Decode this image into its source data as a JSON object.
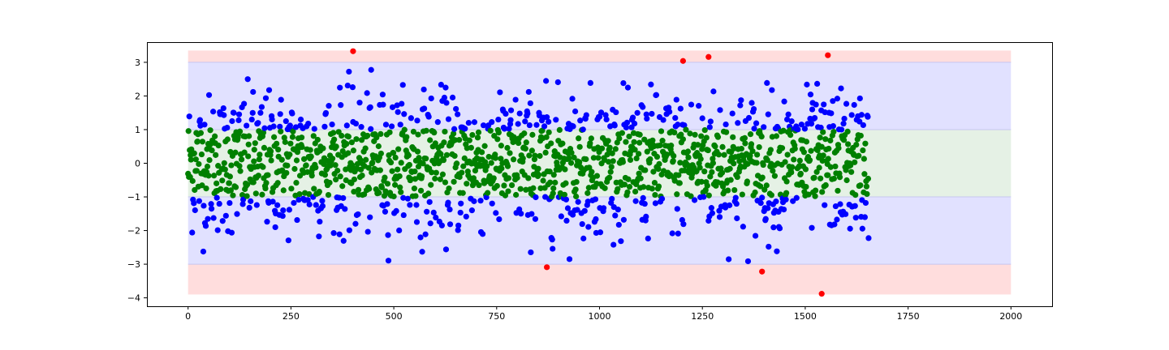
{
  "chart_data": {
    "type": "scatter",
    "title": "",
    "xlabel": "",
    "ylabel": "",
    "xlim": [
      -100,
      2100
    ],
    "ylim": [
      -4.25,
      3.6
    ],
    "xticks": [
      0,
      250,
      500,
      750,
      1000,
      1250,
      1500,
      1750,
      2000
    ],
    "yticks": [
      -4,
      -3,
      -2,
      -1,
      0,
      1,
      2,
      3
    ],
    "grid": false,
    "n_points": 1655,
    "bands": [
      {
        "name": "outer",
        "y0": -3.9,
        "y1": -3.0,
        "x0": 0,
        "x1": 2000,
        "color": "#ffdddd"
      },
      {
        "name": "outer",
        "y0": 3.0,
        "y1": 3.35,
        "x0": 0,
        "x1": 2000,
        "color": "#ffdddd"
      },
      {
        "name": "middle",
        "y0": -3.0,
        "y1": -1.0,
        "x0": 0,
        "x1": 2000,
        "color": "#e1e1ff"
      },
      {
        "name": "middle",
        "y0": 1.0,
        "y1": 3.0,
        "x0": 0,
        "x1": 2000,
        "color": "#e1e1ff"
      },
      {
        "name": "inner",
        "y0": -1.0,
        "y1": 1.0,
        "x0": 0,
        "x1": 2000,
        "color": "#e5f1e5"
      }
    ],
    "series": [
      {
        "color": "#008000",
        "rule": "|y| <= 1"
      },
      {
        "color": "#0000ff",
        "rule": "1 < |y| <= 3"
      },
      {
        "color": "#ff0000",
        "rule": "|y| > 3",
        "points": [
          {
            "x": 401,
            "y": 3.33
          },
          {
            "x": 872,
            "y": -3.09
          },
          {
            "x": 1203,
            "y": 3.04
          },
          {
            "x": 1265,
            "y": 3.16
          },
          {
            "x": 1395,
            "y": -3.22
          },
          {
            "x": 1540,
            "y": -3.88
          },
          {
            "x": 1555,
            "y": 3.21
          }
        ]
      }
    ]
  }
}
